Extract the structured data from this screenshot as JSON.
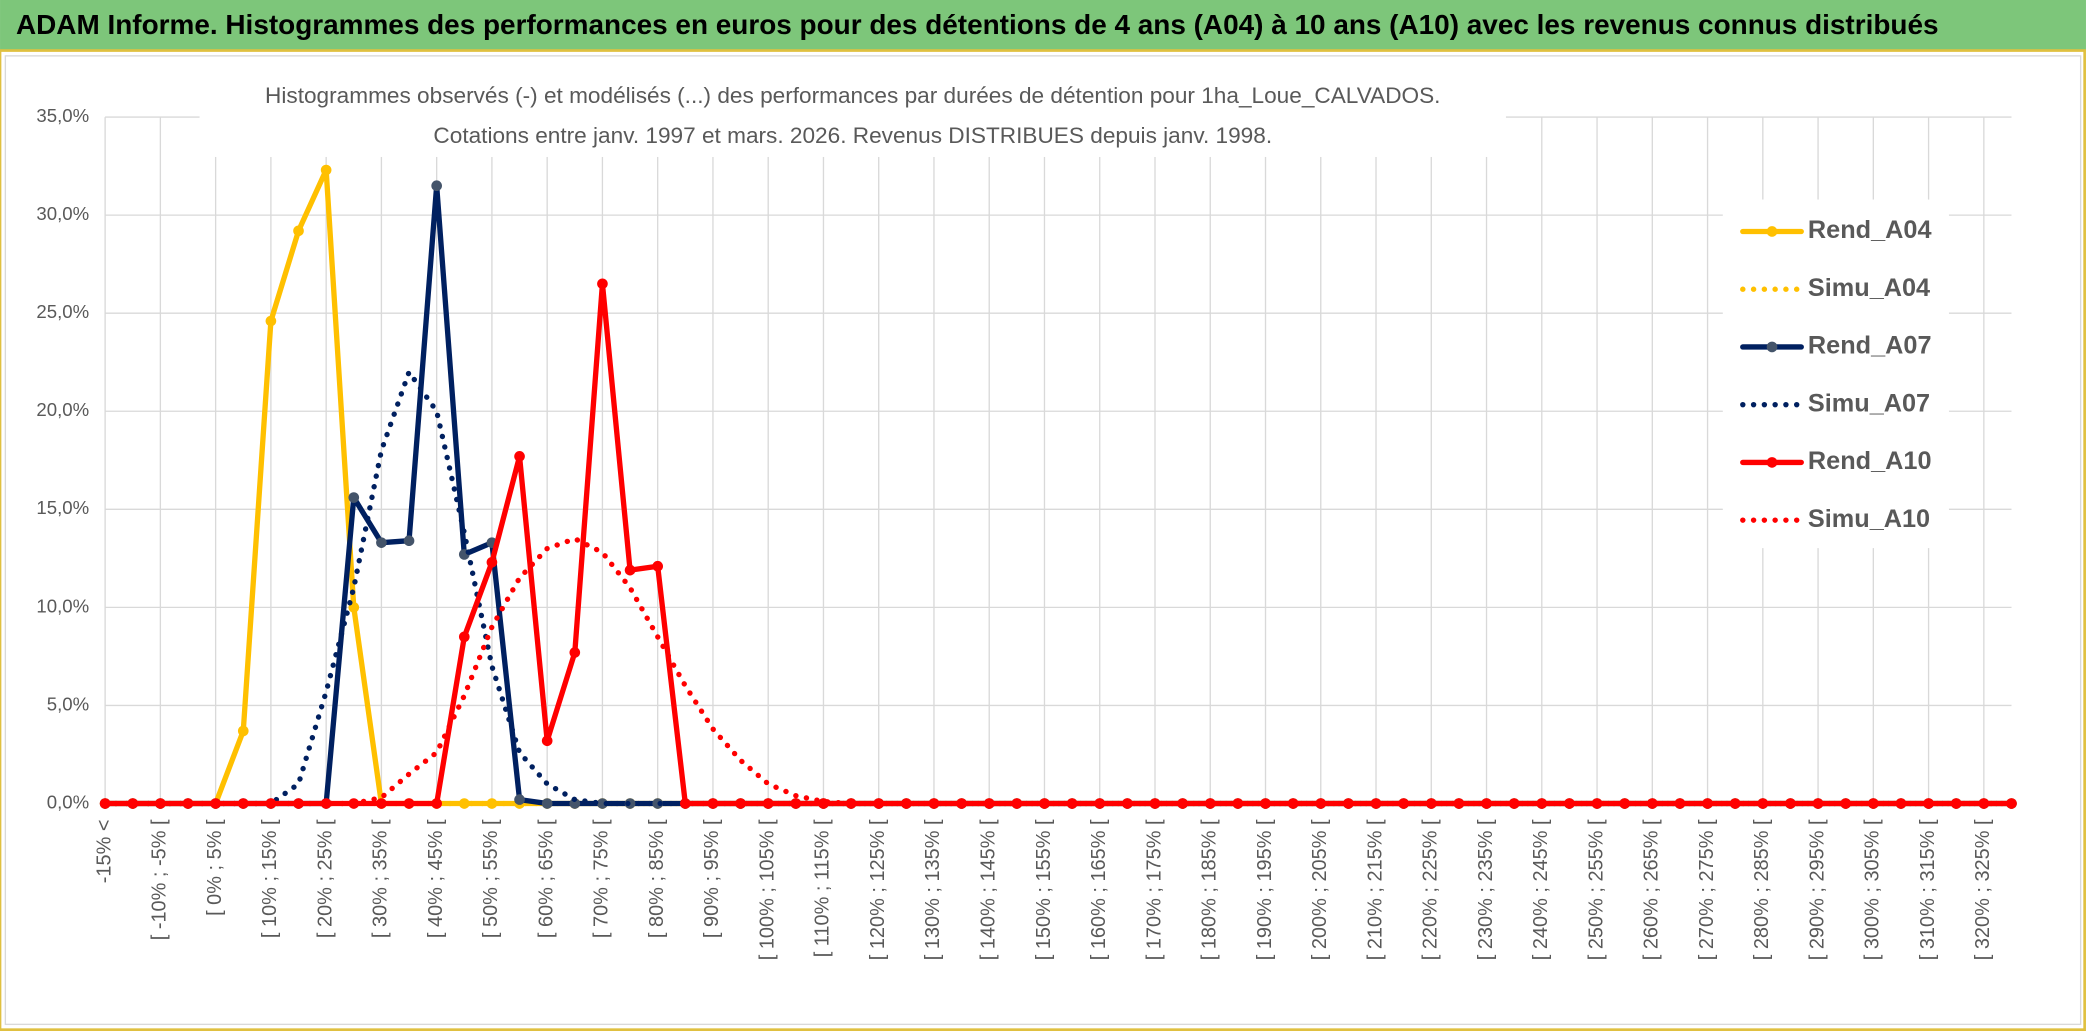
{
  "chart_data": {
    "type": "line",
    "title": "ADAM Informe. Histogrammes des performances en euros pour des détentions de 4 ans (A04) à 10 ans (A10) avec les revenus connus distribués",
    "subtitle": [
      "Histogrammes observés (-) et modélisés (...) des performances par durées de détention pour 1ha_Loue_CALVADOS.",
      "Cotations entre janv. 1997 et mars. 2026. Revenus DISTRIBUES depuis janv. 1998."
    ],
    "categories": [
      "-15% <",
      null,
      "[ -10% ; -5% [",
      null,
      "[ 0% ; 5% [",
      null,
      "[ 10% ; 15% [",
      null,
      "[ 20% ; 25% [",
      null,
      "[ 30% ; 35% [",
      null,
      "[ 40% ; 45% [",
      null,
      "[ 50% ; 55% [",
      null,
      "[ 60% ; 65% [",
      null,
      "[ 70% ; 75% [",
      null,
      "[ 80% ; 85% [",
      null,
      "[ 90% ; 95% [",
      null,
      "[ 100% ; 105% [",
      null,
      "[ 110% ; 115% [",
      null,
      "[ 120% ; 125% [",
      null,
      "[ 130% ; 135% [",
      null,
      "[ 140% ; 145% [",
      null,
      "[ 150% ; 155% [",
      null,
      "[ 160% ; 165% [",
      null,
      "[ 170% ; 175% [",
      null,
      "[ 180% ; 185% [",
      null,
      "[ 190% ; 195% [",
      null,
      "[ 200% ; 205% [",
      null,
      "[ 210% ; 215% [",
      null,
      "[ 220% ; 225% [",
      null,
      "[ 230% ; 235% [",
      null,
      "[ 240% ; 245% [",
      null,
      "[ 250% ; 255% [",
      null,
      "[ 260% ; 265% [",
      null,
      "[ 270% ; 275% [",
      null,
      "[ 280% ; 285% [",
      null,
      "[ 290% ; 295% [",
      null,
      "[ 300% ; 305% [",
      null,
      "[ 310% ; 315% [",
      null,
      "[ 320% ; 325% [",
      null
    ],
    "series": [
      {
        "name": "Rend_A04",
        "color": "#ffc000",
        "style": "solid",
        "markers": true,
        "values": [
          0,
          0,
          0,
          0,
          0,
          3.7,
          24.6,
          29.2,
          32.3,
          10,
          0,
          0,
          0,
          0,
          0,
          0,
          0,
          0,
          0,
          0,
          0,
          0,
          0,
          0,
          0,
          0,
          0,
          0,
          0,
          0,
          0,
          0,
          0,
          0,
          0,
          0,
          0,
          0,
          0,
          0,
          0,
          0,
          0,
          0,
          0,
          0,
          0,
          0,
          0,
          0,
          0,
          0,
          0,
          0,
          0,
          0,
          0,
          0,
          0,
          0,
          0,
          0,
          0,
          0,
          0,
          0,
          0,
          0,
          0,
          0
        ]
      },
      {
        "name": "Simu_A04",
        "color": "#ffc000",
        "style": "dotted",
        "markers": false,
        "values": [
          0,
          0,
          0,
          0,
          0,
          0,
          0,
          0,
          0,
          0,
          0,
          0,
          0,
          0,
          0,
          0,
          0,
          0,
          0,
          0,
          0,
          0,
          0,
          0,
          0,
          0,
          0,
          0,
          0,
          0,
          0,
          0,
          0,
          0,
          0,
          0,
          0,
          0,
          0,
          0,
          0,
          0,
          0,
          0,
          0,
          0,
          0,
          0,
          0,
          0,
          0,
          0,
          0,
          0,
          0,
          0,
          0,
          0,
          0,
          0,
          0,
          0,
          0,
          0,
          0,
          0,
          0,
          0,
          0,
          0
        ]
      },
      {
        "name": "Rend_A07",
        "color": "#002060",
        "style": "solid",
        "markers": true,
        "values": [
          0,
          0,
          0,
          0,
          0,
          0,
          0,
          0,
          0,
          15.6,
          13.3,
          13.4,
          31.5,
          12.7,
          13.3,
          0.2,
          0,
          0,
          0,
          0,
          0,
          0,
          0,
          0,
          0,
          0,
          0,
          0,
          0,
          0,
          0,
          0,
          0,
          0,
          0,
          0,
          0,
          0,
          0,
          0,
          0,
          0,
          0,
          0,
          0,
          0,
          0,
          0,
          0,
          0,
          0,
          0,
          0,
          0,
          0,
          0,
          0,
          0,
          0,
          0,
          0,
          0,
          0,
          0,
          0,
          0,
          0,
          0,
          0,
          0
        ]
      },
      {
        "name": "Simu_A07",
        "color": "#002060",
        "style": "dotted",
        "markers": false,
        "values": [
          0,
          0,
          0,
          0,
          0,
          0,
          0,
          1,
          5.7,
          11,
          18,
          22,
          20,
          13.8,
          7,
          2.6,
          1,
          0.2,
          0,
          0,
          0,
          0,
          0,
          0,
          0,
          0,
          0,
          0,
          0,
          0,
          0,
          0,
          0,
          0,
          0,
          0,
          0,
          0,
          0,
          0,
          0,
          0,
          0,
          0,
          0,
          0,
          0,
          0,
          0,
          0,
          0,
          0,
          0,
          0,
          0,
          0,
          0,
          0,
          0,
          0,
          0,
          0,
          0,
          0,
          0,
          0,
          0,
          0,
          0,
          0
        ]
      },
      {
        "name": "Rend_A10",
        "color": "#ff0000",
        "style": "solid",
        "markers": true,
        "values": [
          0,
          0,
          0,
          0,
          0,
          0,
          0,
          0,
          0,
          0,
          0,
          0,
          0,
          8.5,
          12.3,
          17.7,
          3.2,
          7.7,
          26.5,
          11.9,
          12.1,
          0,
          0,
          0,
          0,
          0,
          0,
          0,
          0,
          0,
          0,
          0,
          0,
          0,
          0,
          0,
          0,
          0,
          0,
          0,
          0,
          0,
          0,
          0,
          0,
          0,
          0,
          0,
          0,
          0,
          0,
          0,
          0,
          0,
          0,
          0,
          0,
          0,
          0,
          0,
          0,
          0,
          0,
          0,
          0,
          0,
          0,
          0,
          0,
          0
        ]
      },
      {
        "name": "Simu_A10",
        "color": "#ff0000",
        "style": "dotted",
        "markers": false,
        "values": [
          0,
          0,
          0,
          0,
          0,
          0,
          0,
          0,
          0,
          0,
          0.3,
          1.5,
          2.6,
          5.5,
          9,
          11.5,
          13,
          13.5,
          12.8,
          11,
          8.5,
          6,
          3.8,
          2.2,
          1,
          0.4,
          0.1,
          0,
          0,
          0,
          0,
          0,
          0,
          0,
          0,
          0,
          0,
          0,
          0,
          0,
          0,
          0,
          0,
          0,
          0,
          0,
          0,
          0,
          0,
          0,
          0,
          0,
          0,
          0,
          0,
          0,
          0,
          0,
          0,
          0,
          0,
          0,
          0,
          0,
          0,
          0,
          0,
          0,
          0,
          0
        ]
      }
    ],
    "ylim": [
      0,
      35
    ],
    "yticks": [
      {
        "value": 0,
        "label": "0,0%"
      },
      {
        "value": 5,
        "label": "5,0%"
      },
      {
        "value": 10,
        "label": "10,0%"
      },
      {
        "value": 15,
        "label": "15,0%"
      },
      {
        "value": 20,
        "label": "20,0%"
      },
      {
        "value": 25,
        "label": "25,0%"
      },
      {
        "value": 30,
        "label": "30,0%"
      },
      {
        "value": 35,
        "label": "35,0%"
      }
    ],
    "grid": true,
    "legend": "right"
  }
}
